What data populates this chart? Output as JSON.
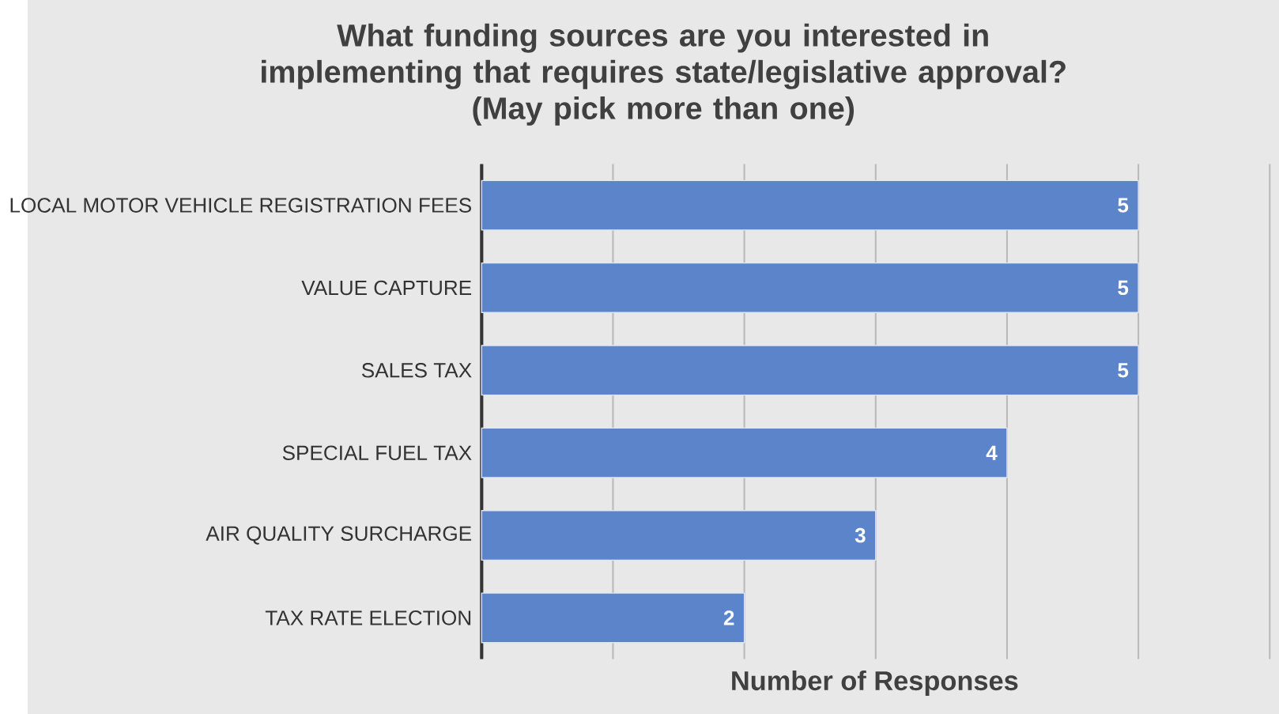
{
  "chart_data": {
    "type": "bar",
    "orientation": "horizontal",
    "title": "What funding sources are you interested in implementing that requires state/legislative approval?",
    "subtitle": "(May pick more than one)",
    "xlabel": "Number of Responses",
    "categories": [
      "LOCAL MOTOR VEHICLE REGISTRATION FEES",
      "VALUE CAPTURE",
      "SALES TAX",
      "SPECIAL FUEL TAX",
      "AIR QUALITY SURCHARGE",
      "TAX RATE ELECTION"
    ],
    "values": [
      5,
      5,
      5,
      4,
      3,
      2
    ],
    "color": "#5b84cb",
    "xlim": [
      0,
      6
    ],
    "tick_labels": "y",
    "grid": "x",
    "data_labels": true
  }
}
